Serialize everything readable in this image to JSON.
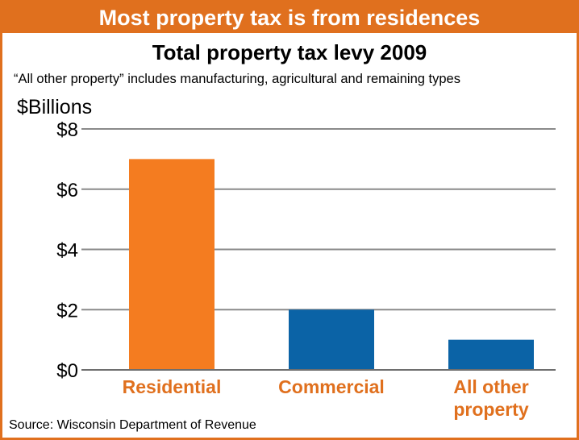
{
  "header": {
    "banner": "Most property tax is from residences"
  },
  "chart_data": {
    "type": "bar",
    "title": "Total property tax levy 2009",
    "subtitle": "“All other property” includes manufacturing, agricultural and remaining types",
    "ylabel": "$Billions",
    "categories": [
      "Residential",
      "Commercial",
      "All other property"
    ],
    "category_lines": [
      [
        "Residential"
      ],
      [
        "Commercial"
      ],
      [
        "All other",
        "property"
      ]
    ],
    "values": [
      7.0,
      2.0,
      1.0
    ],
    "ylim": [
      0,
      8
    ],
    "yticks": [
      0,
      2,
      4,
      6,
      8
    ],
    "ytick_labels": [
      "$0",
      "$2",
      "$4",
      "$6",
      "$8"
    ],
    "grid": true,
    "bar_colors": [
      "#f47c20",
      "#0b63a6",
      "#0b63a6"
    ],
    "label_color": "#e0701e"
  },
  "footer": {
    "source": "Source: Wisconsin Department of Revenue"
  }
}
